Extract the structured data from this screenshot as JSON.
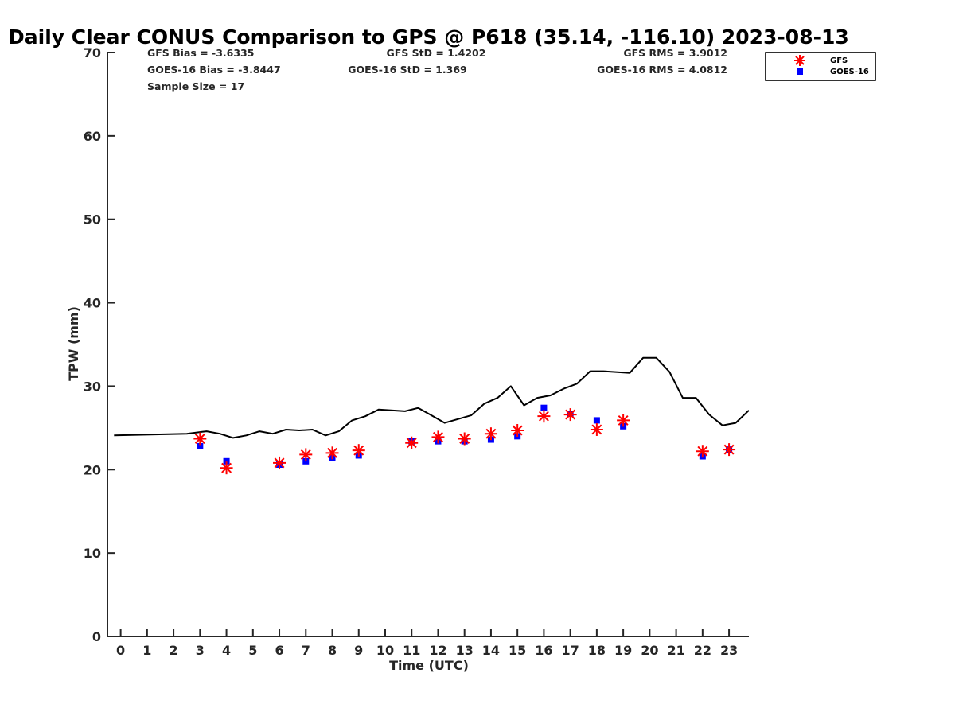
{
  "chart_data": {
    "type": "scatter",
    "title": "Daily Clear CONUS Comparison to GPS @ P618 (35.14, -116.10) 2023-08-13",
    "xlabel": "Time (UTC)",
    "ylabel": "TPW (mm)",
    "xlim": [
      -0.5,
      23.75
    ],
    "ylim": [
      0,
      70
    ],
    "x_ticks": [
      "0",
      "1",
      "2",
      "3",
      "4",
      "5",
      "6",
      "7",
      "8",
      "9",
      "10",
      "11",
      "12",
      "13",
      "14",
      "15",
      "16",
      "17",
      "18",
      "19",
      "20",
      "21",
      "22",
      "23"
    ],
    "y_ticks": [
      "0",
      "10",
      "20",
      "30",
      "40",
      "50",
      "60",
      "70"
    ],
    "grid": false,
    "legend": "top-right outside",
    "stats": {
      "gfs_bias": "GFS Bias = -3.6335",
      "goes_bias": "GOES-16 Bias = -3.8447",
      "sample_size": "Sample Size = 17",
      "gfs_std": "GFS StD = 1.4202",
      "goes_std": "GOES-16 StD = 1.369",
      "gfs_rms": "GFS RMS = 3.9012",
      "goes_rms": "GOES-16 RMS = 4.0812"
    },
    "series": [
      {
        "name": "GFS",
        "marker": "asterisk",
        "color": "#ff0000",
        "x": [
          3,
          4,
          6,
          7,
          8,
          9,
          11,
          12,
          13,
          14,
          15,
          16,
          17,
          18,
          19,
          22,
          23
        ],
        "y": [
          23.7,
          20.2,
          20.8,
          21.8,
          22.0,
          22.3,
          23.2,
          23.9,
          23.7,
          24.3,
          24.7,
          26.4,
          26.6,
          24.8,
          25.9,
          22.2,
          22.4
        ]
      },
      {
        "name": "GOES-16",
        "marker": "square",
        "color": "#0000ff",
        "x": [
          3,
          4,
          6,
          7,
          8,
          9,
          11,
          12,
          13,
          14,
          15,
          16,
          17,
          18,
          19,
          22,
          23
        ],
        "y": [
          22.8,
          21.0,
          20.6,
          21.0,
          21.4,
          21.7,
          23.4,
          23.4,
          23.4,
          23.6,
          24.0,
          27.4,
          26.7,
          25.9,
          25.2,
          21.6,
          22.4
        ]
      },
      {
        "name": "GPS",
        "marker": "line",
        "color": "#000000",
        "x": [
          -0.25,
          2.5,
          3.25,
          3.75,
          4.25,
          4.75,
          5.25,
          5.75,
          6.25,
          6.75,
          7.25,
          7.75,
          8.25,
          8.75,
          9.25,
          9.75,
          10.75,
          11.25,
          11.75,
          12.25,
          13.25,
          13.75,
          14.25,
          14.75,
          15.25,
          15.75,
          16.25,
          16.75,
          17.25,
          17.75,
          18.25,
          19.25,
          19.75,
          20.25,
          20.75,
          21.25,
          21.75,
          22.25,
          22.75,
          23.25,
          23.75
        ],
        "y": [
          24.1,
          24.3,
          24.6,
          24.3,
          23.8,
          24.1,
          24.6,
          24.3,
          24.8,
          24.7,
          24.8,
          24.1,
          24.6,
          25.9,
          26.4,
          27.2,
          27.0,
          27.4,
          26.5,
          25.6,
          26.5,
          27.9,
          28.6,
          30.0,
          27.7,
          28.6,
          28.9,
          29.7,
          30.3,
          31.8,
          31.8,
          31.6,
          33.4,
          33.4,
          31.7,
          28.6,
          28.6,
          26.6,
          25.3,
          25.6,
          27.1
        ]
      }
    ]
  }
}
